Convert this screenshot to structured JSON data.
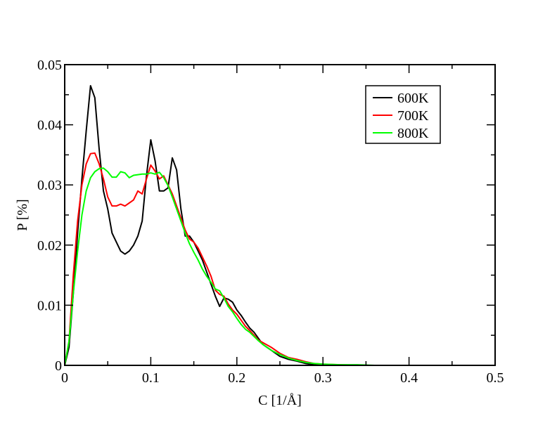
{
  "chart_data": {
    "type": "line",
    "xlabel": "C [1/Å]",
    "ylabel": "P [%]",
    "xlim": [
      0,
      0.5
    ],
    "ylim": [
      0,
      0.05
    ],
    "x_ticks": [
      "0",
      "0.1",
      "0.2",
      "0.3",
      "0.4",
      "0.5"
    ],
    "y_ticks": [
      "0",
      "0.01",
      "0.02",
      "0.03",
      "0.04",
      "0.05"
    ],
    "grid": false,
    "legend_position": "top-right",
    "series": [
      {
        "name": "600K",
        "color": "#000000",
        "points": [
          [
            0.0,
            0.0
          ],
          [
            0.005,
            0.003
          ],
          [
            0.01,
            0.012
          ],
          [
            0.015,
            0.022
          ],
          [
            0.02,
            0.031
          ],
          [
            0.025,
            0.039
          ],
          [
            0.03,
            0.0465
          ],
          [
            0.035,
            0.0445
          ],
          [
            0.04,
            0.036
          ],
          [
            0.045,
            0.029
          ],
          [
            0.05,
            0.026
          ],
          [
            0.055,
            0.022
          ],
          [
            0.06,
            0.0205
          ],
          [
            0.065,
            0.019
          ],
          [
            0.07,
            0.0185
          ],
          [
            0.075,
            0.019
          ],
          [
            0.08,
            0.02
          ],
          [
            0.085,
            0.0215
          ],
          [
            0.09,
            0.024
          ],
          [
            0.095,
            0.0315
          ],
          [
            0.1,
            0.0375
          ],
          [
            0.105,
            0.034
          ],
          [
            0.11,
            0.029
          ],
          [
            0.115,
            0.029
          ],
          [
            0.12,
            0.0295
          ],
          [
            0.125,
            0.0345
          ],
          [
            0.13,
            0.0325
          ],
          [
            0.135,
            0.026
          ],
          [
            0.14,
            0.0215
          ],
          [
            0.145,
            0.0215
          ],
          [
            0.15,
            0.0205
          ],
          [
            0.155,
            0.019
          ],
          [
            0.16,
            0.0175
          ],
          [
            0.165,
            0.0155
          ],
          [
            0.17,
            0.0135
          ],
          [
            0.175,
            0.0115
          ],
          [
            0.18,
            0.0098
          ],
          [
            0.185,
            0.0112
          ],
          [
            0.19,
            0.011
          ],
          [
            0.195,
            0.0105
          ],
          [
            0.2,
            0.0092
          ],
          [
            0.205,
            0.0083
          ],
          [
            0.21,
            0.0072
          ],
          [
            0.215,
            0.0062
          ],
          [
            0.22,
            0.0055
          ],
          [
            0.225,
            0.0045
          ],
          [
            0.23,
            0.0035
          ],
          [
            0.24,
            0.0025
          ],
          [
            0.25,
            0.0015
          ],
          [
            0.26,
            0.001
          ],
          [
            0.27,
            0.0007
          ],
          [
            0.28,
            0.0003
          ],
          [
            0.29,
            0.0001
          ],
          [
            0.3,
            0.0001
          ],
          [
            0.32,
            0.0
          ],
          [
            0.34,
            0.0
          ]
        ]
      },
      {
        "name": "700K",
        "color": "#ff0000",
        "points": [
          [
            0.0,
            0.0
          ],
          [
            0.005,
            0.004
          ],
          [
            0.01,
            0.015
          ],
          [
            0.015,
            0.024
          ],
          [
            0.02,
            0.03
          ],
          [
            0.025,
            0.0335
          ],
          [
            0.03,
            0.0352
          ],
          [
            0.035,
            0.0353
          ],
          [
            0.04,
            0.0335
          ],
          [
            0.045,
            0.031
          ],
          [
            0.05,
            0.028
          ],
          [
            0.055,
            0.0265
          ],
          [
            0.06,
            0.0265
          ],
          [
            0.065,
            0.0268
          ],
          [
            0.07,
            0.0265
          ],
          [
            0.075,
            0.027
          ],
          [
            0.08,
            0.0275
          ],
          [
            0.085,
            0.029
          ],
          [
            0.09,
            0.0285
          ],
          [
            0.095,
            0.031
          ],
          [
            0.1,
            0.0333
          ],
          [
            0.105,
            0.0323
          ],
          [
            0.11,
            0.031
          ],
          [
            0.115,
            0.0315
          ],
          [
            0.12,
            0.03
          ],
          [
            0.125,
            0.0285
          ],
          [
            0.13,
            0.0265
          ],
          [
            0.135,
            0.0245
          ],
          [
            0.14,
            0.0225
          ],
          [
            0.145,
            0.021
          ],
          [
            0.15,
            0.0205
          ],
          [
            0.155,
            0.0195
          ],
          [
            0.16,
            0.018
          ],
          [
            0.165,
            0.0165
          ],
          [
            0.17,
            0.0148
          ],
          [
            0.175,
            0.0125
          ],
          [
            0.18,
            0.0118
          ],
          [
            0.185,
            0.0115
          ],
          [
            0.19,
            0.0102
          ],
          [
            0.195,
            0.0092
          ],
          [
            0.2,
            0.0085
          ],
          [
            0.205,
            0.0075
          ],
          [
            0.21,
            0.0065
          ],
          [
            0.215,
            0.0058
          ],
          [
            0.22,
            0.005
          ],
          [
            0.225,
            0.0042
          ],
          [
            0.23,
            0.0038
          ],
          [
            0.24,
            0.003
          ],
          [
            0.25,
            0.002
          ],
          [
            0.26,
            0.0013
          ],
          [
            0.27,
            0.001
          ],
          [
            0.28,
            0.0006
          ],
          [
            0.29,
            0.0003
          ],
          [
            0.3,
            0.0002
          ],
          [
            0.32,
            0.0001
          ],
          [
            0.34,
            0.0
          ]
        ]
      },
      {
        "name": "800K",
        "color": "#00ff00",
        "points": [
          [
            0.0,
            0.0
          ],
          [
            0.005,
            0.004
          ],
          [
            0.01,
            0.012
          ],
          [
            0.015,
            0.019
          ],
          [
            0.02,
            0.025
          ],
          [
            0.025,
            0.029
          ],
          [
            0.03,
            0.0312
          ],
          [
            0.035,
            0.0322
          ],
          [
            0.04,
            0.0327
          ],
          [
            0.045,
            0.0328
          ],
          [
            0.05,
            0.0322
          ],
          [
            0.055,
            0.0313
          ],
          [
            0.06,
            0.0313
          ],
          [
            0.065,
            0.0322
          ],
          [
            0.07,
            0.032
          ],
          [
            0.075,
            0.0312
          ],
          [
            0.08,
            0.0316
          ],
          [
            0.085,
            0.0317
          ],
          [
            0.09,
            0.0318
          ],
          [
            0.095,
            0.0318
          ],
          [
            0.1,
            0.032
          ],
          [
            0.105,
            0.0318
          ],
          [
            0.11,
            0.0321
          ],
          [
            0.115,
            0.0312
          ],
          [
            0.12,
            0.0299
          ],
          [
            0.125,
            0.028
          ],
          [
            0.13,
            0.026
          ],
          [
            0.135,
            0.024
          ],
          [
            0.14,
            0.022
          ],
          [
            0.145,
            0.0202
          ],
          [
            0.15,
            0.0188
          ],
          [
            0.155,
            0.0175
          ],
          [
            0.16,
            0.016
          ],
          [
            0.165,
            0.0148
          ],
          [
            0.17,
            0.0138
          ],
          [
            0.175,
            0.0127
          ],
          [
            0.18,
            0.0124
          ],
          [
            0.185,
            0.0112
          ],
          [
            0.19,
            0.0098
          ],
          [
            0.195,
            0.0089
          ],
          [
            0.2,
            0.0078
          ],
          [
            0.205,
            0.0068
          ],
          [
            0.21,
            0.006
          ],
          [
            0.215,
            0.0055
          ],
          [
            0.22,
            0.0048
          ],
          [
            0.225,
            0.0041
          ],
          [
            0.23,
            0.0035
          ],
          [
            0.24,
            0.0025
          ],
          [
            0.25,
            0.0018
          ],
          [
            0.26,
            0.0012
          ],
          [
            0.27,
            0.0008
          ],
          [
            0.28,
            0.0005
          ],
          [
            0.29,
            0.0003
          ],
          [
            0.3,
            0.0002
          ],
          [
            0.32,
            0.0001
          ],
          [
            0.34,
            0.0001
          ],
          [
            0.36,
            0.0
          ]
        ]
      }
    ]
  }
}
